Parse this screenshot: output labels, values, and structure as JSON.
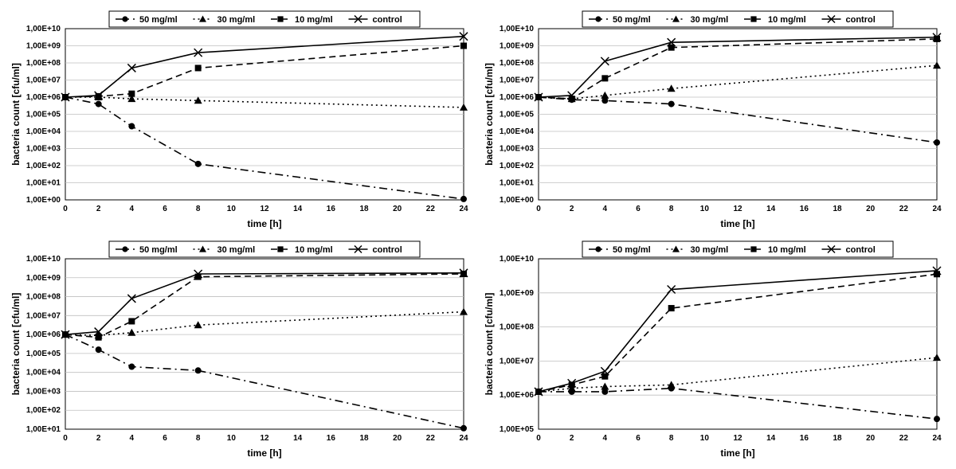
{
  "layout": {
    "rows": 2,
    "cols": 2,
    "total_width": 1180,
    "total_height": 569,
    "gap": 8
  },
  "common": {
    "xlabel": "time [h]",
    "ylabel": "bacteria count [cfu/ml]",
    "x_values": [
      0,
      2,
      4,
      8,
      24
    ],
    "xticks": [
      0,
      2,
      4,
      6,
      8,
      10,
      12,
      14,
      16,
      18,
      20,
      22,
      24
    ],
    "yticks_log10": [
      0,
      1,
      2,
      3,
      4,
      5,
      6,
      7,
      8,
      9,
      10
    ],
    "ytick_labels": [
      "1,00E+00",
      "1,00E+01",
      "1,00E+02",
      "1,00E+03",
      "1,00E+04",
      "1,00E+05",
      "1,00E+06",
      "1,00E+07",
      "1,00E+08",
      "1,00E+09",
      "1,00E+10"
    ],
    "legend": [
      {
        "label": "50 mg/ml",
        "marker": "circle",
        "dash": "dashdot"
      },
      {
        "label": "30 mg/ml",
        "marker": "triangle",
        "dash": "dot"
      },
      {
        "label": "10 mg/ml",
        "marker": "square",
        "dash": "dash"
      },
      {
        "label": "control",
        "marker": "x",
        "dash": "solid"
      }
    ],
    "colors": {
      "background": "#ffffff",
      "border": "#000000",
      "grid": "#bfbfbf",
      "line": "#000000",
      "text": "#000000"
    },
    "fontsize": {
      "axis_label": 12,
      "tick": 10,
      "legend": 11
    },
    "line_width": 1.6,
    "marker_size": 5
  },
  "charts": [
    {
      "ylim_log10": [
        0,
        10
      ],
      "series": {
        "control": [
          6.0,
          6.1,
          7.7,
          8.6,
          9.55
        ],
        "s10": [
          6.0,
          6.05,
          6.2,
          7.7,
          9.0
        ],
        "s30": [
          6.0,
          6.0,
          5.9,
          5.8,
          5.4
        ],
        "s50": [
          6.0,
          5.6,
          4.3,
          2.1,
          0.05
        ]
      }
    },
    {
      "ylim_log10": [
        0,
        10
      ],
      "series": {
        "control": [
          6.0,
          6.1,
          8.1,
          9.2,
          9.5
        ],
        "s10": [
          6.0,
          5.9,
          7.1,
          8.9,
          9.4
        ],
        "s30": [
          6.0,
          5.9,
          6.1,
          6.5,
          7.85
        ],
        "s50": [
          6.0,
          5.85,
          5.8,
          5.6,
          3.35
        ]
      }
    },
    {
      "ylim_log10": [
        1,
        10
      ],
      "series": {
        "control": [
          6.0,
          6.15,
          7.9,
          9.2,
          9.25
        ],
        "s10": [
          6.0,
          5.85,
          6.7,
          9.05,
          9.2
        ],
        "s30": [
          6.0,
          5.95,
          6.1,
          6.5,
          7.2
        ],
        "s50": [
          6.0,
          5.2,
          4.3,
          4.1,
          1.05
        ]
      }
    },
    {
      "ylim_log10": [
        5,
        10
      ],
      "series": {
        "control": [
          6.1,
          6.35,
          6.7,
          9.1,
          9.65
        ],
        "s10": [
          6.1,
          6.3,
          6.55,
          8.55,
          9.55
        ],
        "s30": [
          6.1,
          6.2,
          6.25,
          6.3,
          7.1
        ],
        "s50": [
          6.1,
          6.1,
          6.1,
          6.2,
          5.3
        ]
      }
    }
  ]
}
